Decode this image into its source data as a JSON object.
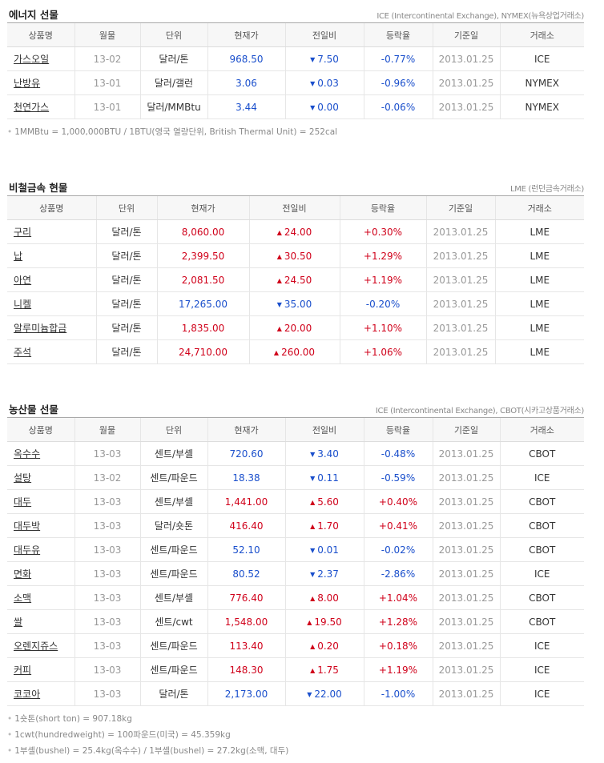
{
  "columns_full": [
    "상품명",
    "월물",
    "단위",
    "현재가",
    "전일비",
    "등락율",
    "기준일",
    "거래소"
  ],
  "columns_short": [
    "상품명",
    "단위",
    "현재가",
    "전일비",
    "등락율",
    "기준일",
    "거래소"
  ],
  "colors": {
    "up": "#d0021b",
    "down": "#1a4fcc",
    "header_bg": "#f7f7f7"
  },
  "energy": {
    "title": "에너지 선물",
    "source": "ICE (Intercontinental Exchange), NYMEX(뉴욕상업거래소)",
    "rows": [
      {
        "name": "가스오일",
        "month": "13-02",
        "unit": "달러/톤",
        "price": "968.50",
        "dir": "down",
        "change": "7.50",
        "pct": "-0.77%",
        "date": "2013.01.25",
        "exchange": "ICE"
      },
      {
        "name": "난방유",
        "month": "13-01",
        "unit": "달러/갤런",
        "price": "3.06",
        "dir": "down",
        "change": "0.03",
        "pct": "-0.96%",
        "date": "2013.01.25",
        "exchange": "NYMEX"
      },
      {
        "name": "천연가스",
        "month": "13-01",
        "unit": "달러/MMBtu",
        "price": "3.44",
        "dir": "down",
        "change": "0.00",
        "pct": "-0.06%",
        "date": "2013.01.25",
        "exchange": "NYMEX"
      }
    ],
    "notes": [
      "1MMBtu = 1,000,000BTU / 1BTU(영국 열량단위, British Thermal Unit) = 252cal"
    ]
  },
  "metals": {
    "title": "비철금속 현물",
    "source": "LME (런던금속거래소)",
    "rows": [
      {
        "name": "구리",
        "unit": "달러/톤",
        "price": "8,060.00",
        "dir": "up",
        "change": "24.00",
        "pct": "+0.30%",
        "date": "2013.01.25",
        "exchange": "LME"
      },
      {
        "name": "납",
        "unit": "달러/톤",
        "price": "2,399.50",
        "dir": "up",
        "change": "30.50",
        "pct": "+1.29%",
        "date": "2013.01.25",
        "exchange": "LME"
      },
      {
        "name": "아연",
        "unit": "달러/톤",
        "price": "2,081.50",
        "dir": "up",
        "change": "24.50",
        "pct": "+1.19%",
        "date": "2013.01.25",
        "exchange": "LME"
      },
      {
        "name": "니켈",
        "unit": "달러/톤",
        "price": "17,265.00",
        "dir": "down",
        "change": "35.00",
        "pct": "-0.20%",
        "date": "2013.01.25",
        "exchange": "LME"
      },
      {
        "name": "알루미늄합금",
        "unit": "달러/톤",
        "price": "1,835.00",
        "dir": "up",
        "change": "20.00",
        "pct": "+1.10%",
        "date": "2013.01.25",
        "exchange": "LME"
      },
      {
        "name": "주석",
        "unit": "달러/톤",
        "price": "24,710.00",
        "dir": "up",
        "change": "260.00",
        "pct": "+1.06%",
        "date": "2013.01.25",
        "exchange": "LME"
      }
    ]
  },
  "agri": {
    "title": "농산물 선물",
    "source": "ICE (Intercontinental Exchange), CBOT(시카고상품거래소)",
    "rows": [
      {
        "name": "옥수수",
        "month": "13-03",
        "unit": "센트/부셸",
        "price": "720.60",
        "dir": "down",
        "change": "3.40",
        "pct": "-0.48%",
        "date": "2013.01.25",
        "exchange": "CBOT"
      },
      {
        "name": "설탕",
        "month": "13-02",
        "unit": "센트/파운드",
        "price": "18.38",
        "dir": "down",
        "change": "0.11",
        "pct": "-0.59%",
        "date": "2013.01.25",
        "exchange": "ICE"
      },
      {
        "name": "대두",
        "month": "13-03",
        "unit": "센트/부셸",
        "price": "1,441.00",
        "dir": "up",
        "change": "5.60",
        "pct": "+0.40%",
        "date": "2013.01.25",
        "exchange": "CBOT"
      },
      {
        "name": "대두박",
        "month": "13-03",
        "unit": "달러/숏톤",
        "price": "416.40",
        "dir": "up",
        "change": "1.70",
        "pct": "+0.41%",
        "date": "2013.01.25",
        "exchange": "CBOT"
      },
      {
        "name": "대두유",
        "month": "13-03",
        "unit": "센트/파운드",
        "price": "52.10",
        "dir": "down",
        "change": "0.01",
        "pct": "-0.02%",
        "date": "2013.01.25",
        "exchange": "CBOT"
      },
      {
        "name": "면화",
        "month": "13-03",
        "unit": "센트/파운드",
        "price": "80.52",
        "dir": "down",
        "change": "2.37",
        "pct": "-2.86%",
        "date": "2013.01.25",
        "exchange": "ICE"
      },
      {
        "name": "소맥",
        "month": "13-03",
        "unit": "센트/부셸",
        "price": "776.40",
        "dir": "up",
        "change": "8.00",
        "pct": "+1.04%",
        "date": "2013.01.25",
        "exchange": "CBOT"
      },
      {
        "name": "쌀",
        "month": "13-03",
        "unit": "센트/cwt",
        "price": "1,548.00",
        "dir": "up",
        "change": "19.50",
        "pct": "+1.28%",
        "date": "2013.01.25",
        "exchange": "CBOT"
      },
      {
        "name": "오렌지쥬스",
        "month": "13-03",
        "unit": "센트/파운드",
        "price": "113.40",
        "dir": "up",
        "change": "0.20",
        "pct": "+0.18%",
        "date": "2013.01.25",
        "exchange": "ICE"
      },
      {
        "name": "커피",
        "month": "13-03",
        "unit": "센트/파운드",
        "price": "148.30",
        "dir": "up",
        "change": "1.75",
        "pct": "+1.19%",
        "date": "2013.01.25",
        "exchange": "ICE"
      },
      {
        "name": "코코아",
        "month": "13-03",
        "unit": "달러/톤",
        "price": "2,173.00",
        "dir": "down",
        "change": "22.00",
        "pct": "-1.00%",
        "date": "2013.01.25",
        "exchange": "ICE"
      }
    ],
    "notes": [
      "1숏톤(short ton) = 907.18kg",
      "1cwt(hundredweight) = 100파운드(미국) = 45.359kg",
      "1부셸(bushel) = 25.4kg(옥수수) / 1부셸(bushel) = 27.2kg(소맥, 대두)"
    ]
  }
}
